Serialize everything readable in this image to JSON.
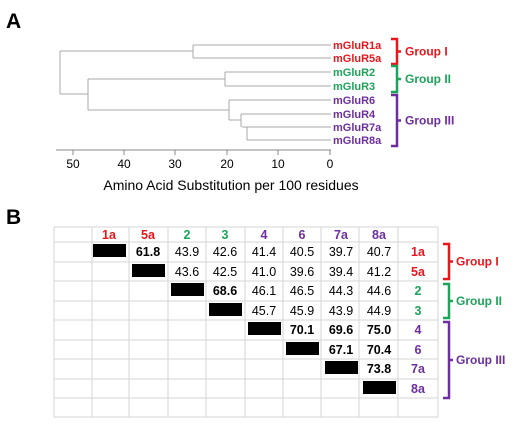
{
  "colors": {
    "group1": "#e8161d",
    "group2": "#1ea35a",
    "group3": "#6d2f9c",
    "tree_line": "#a8a8a8",
    "grid_line": "#d6d6d6",
    "diag_fill": "#000000"
  },
  "panelA": {
    "label": "A",
    "leaves": [
      {
        "name": "mGluR1a",
        "group": 1
      },
      {
        "name": "mGluR5a",
        "group": 1
      },
      {
        "name": "mGluR2",
        "group": 2
      },
      {
        "name": "mGluR3",
        "group": 2
      },
      {
        "name": "mGluR6",
        "group": 3
      },
      {
        "name": "mGluR4",
        "group": 3
      },
      {
        "name": "mGluR7a",
        "group": 3
      },
      {
        "name": "mGluR8a",
        "group": 3
      }
    ],
    "groups": [
      {
        "label": "Group I",
        "group": 1
      },
      {
        "label": "Group II",
        "group": 2
      },
      {
        "label": "Group III",
        "group": 3
      }
    ],
    "axis_ticks": [
      "50",
      "40",
      "30",
      "20",
      "10",
      "0"
    ],
    "axis_title": "Amino Acid Substitution per 100 residues"
  },
  "panelB": {
    "label": "B",
    "columns": [
      {
        "label": "1a",
        "group": 1
      },
      {
        "label": "5a",
        "group": 1
      },
      {
        "label": "2",
        "group": 2
      },
      {
        "label": "3",
        "group": 2
      },
      {
        "label": "4",
        "group": 3
      },
      {
        "label": "6",
        "group": 3
      },
      {
        "label": "7a",
        "group": 3
      },
      {
        "label": "8a",
        "group": 3
      }
    ],
    "rows": [
      {
        "label": "1a",
        "group": 1,
        "cells": [
          null,
          "61.8",
          "43.9",
          "42.6",
          "41.4",
          "40.5",
          "39.7",
          "40.7"
        ]
      },
      {
        "label": "5a",
        "group": 1,
        "cells": [
          null,
          null,
          "43.6",
          "42.5",
          "41.0",
          "39.6",
          "39.4",
          "41.2"
        ]
      },
      {
        "label": "2",
        "group": 2,
        "cells": [
          null,
          null,
          null,
          "68.6",
          "46.1",
          "46.5",
          "44.3",
          "44.6"
        ]
      },
      {
        "label": "3",
        "group": 2,
        "cells": [
          null,
          null,
          null,
          null,
          "45.7",
          "45.9",
          "43.9",
          "44.9"
        ]
      },
      {
        "label": "4",
        "group": 3,
        "cells": [
          null,
          null,
          null,
          null,
          null,
          "70.1",
          "69.6",
          "75.0"
        ]
      },
      {
        "label": "6",
        "group": 3,
        "cells": [
          null,
          null,
          null,
          null,
          null,
          null,
          "67.1",
          "70.4"
        ]
      },
      {
        "label": "7a",
        "group": 3,
        "cells": [
          null,
          null,
          null,
          null,
          null,
          null,
          null,
          "73.8"
        ]
      },
      {
        "label": "8a",
        "group": 3,
        "cells": [
          null,
          null,
          null,
          null,
          null,
          null,
          null,
          null
        ]
      }
    ],
    "groups": [
      {
        "label": "Group I",
        "group": 1
      },
      {
        "label": "Group II",
        "group": 2
      },
      {
        "label": "Group III",
        "group": 3
      }
    ]
  }
}
